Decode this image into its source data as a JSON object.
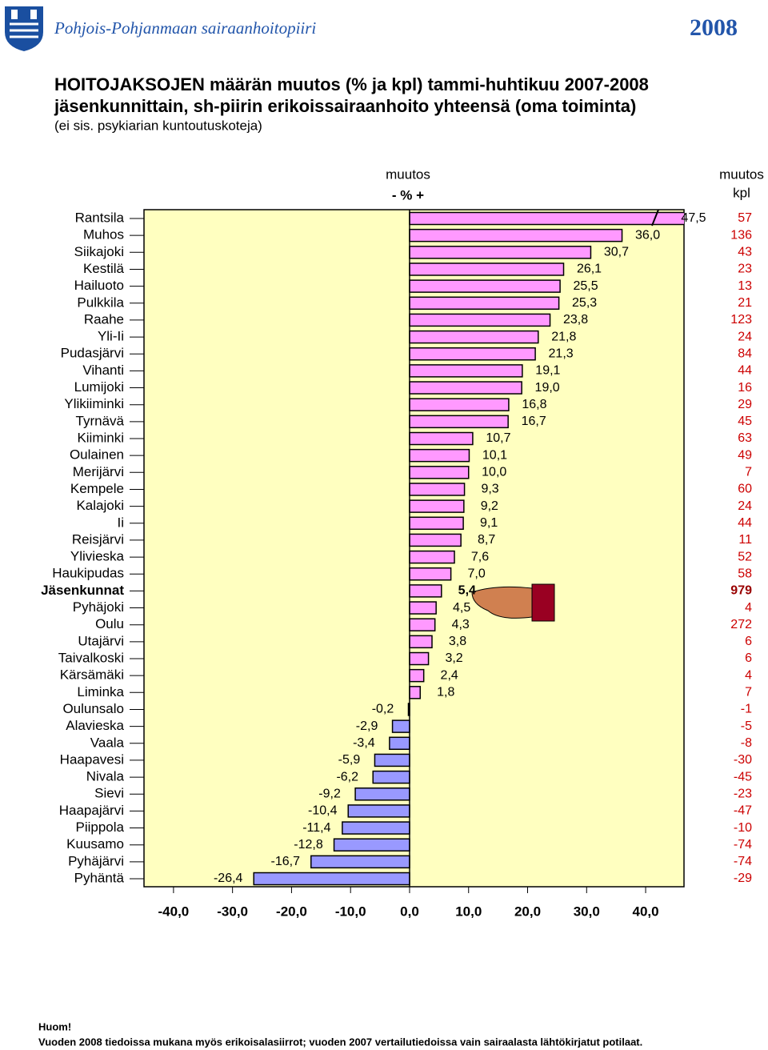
{
  "header": {
    "organization": "Pohjois-Pohjanmaan sairaanhoitopiiri",
    "year": "2008"
  },
  "chart_data": {
    "type": "hbar",
    "title": [
      "HOITOJAKSOJEN määrän muutos (% ja kpl) tammi-huhtikuu 2007-2008",
      "jäsenkunnittain, sh-piirin erikoissairaanhoito yhteensä (oma toiminta)",
      "(ei sis. psykiarian kuntoutuskoteja)"
    ],
    "pct_header": [
      "muutos",
      "- % +"
    ],
    "kpl_header": [
      "muutos",
      "kpl"
    ],
    "categories": [
      "Rantsila",
      "Muhos",
      "Siikajoki",
      "Kestilä",
      "Hailuoto",
      "Pulkkila",
      "Raahe",
      "Yli-Ii",
      "Pudasjärvi",
      "Vihanti",
      "Lumijoki",
      "Ylikiiminki",
      "Tyrnävä",
      "Kiiminki",
      "Oulainen",
      "Merijärvi",
      "Kempele",
      "Kalajoki",
      "Ii",
      "Reisjärvi",
      "Ylivieska",
      "Haukipudas",
      "Jäsenkunnat",
      "Pyhäjoki",
      "Oulu",
      "Utajärvi",
      "Taivalkoski",
      "Kärsämäki",
      "Liminka",
      "Oulunsalo",
      "Alavieska",
      "Vaala",
      "Haapavesi",
      "Nivala",
      "Sievi",
      "Haapajärvi",
      "Piippola",
      "Kuusamo",
      "Pyhäjärvi",
      "Pyhäntä"
    ],
    "values": [
      47.5,
      36.0,
      30.7,
      26.1,
      25.5,
      25.3,
      23.8,
      21.8,
      21.3,
      19.1,
      19.0,
      16.8,
      16.7,
      10.7,
      10.1,
      10.0,
      9.3,
      9.2,
      9.1,
      8.7,
      7.6,
      7.0,
      5.4,
      4.5,
      4.3,
      3.8,
      3.2,
      2.4,
      1.8,
      -0.2,
      -2.9,
      -3.4,
      -5.9,
      -6.2,
      -9.2,
      -10.4,
      -11.4,
      -12.8,
      -16.7,
      -26.4
    ],
    "value_labels": [
      "47,5",
      "36,0",
      "30,7",
      "26,1",
      "25,5",
      "25,3",
      "23,8",
      "21,8",
      "21,3",
      "19,1",
      "19,0",
      "16,8",
      "16,7",
      "10,7",
      "10,1",
      "10,0",
      "9,3",
      "9,2",
      "9,1",
      "8,7",
      "7,6",
      "7,0",
      "5,4",
      "4,5",
      "4,3",
      "3,8",
      "3,2",
      "2,4",
      "1,8",
      "-0,2",
      "-2,9",
      "-3,4",
      "-5,9",
      "-6,2",
      "-9,2",
      "-10,4",
      "-11,4",
      "-12,8",
      "-16,7",
      "-26,4"
    ],
    "kpl": [
      57,
      136,
      43,
      23,
      13,
      21,
      123,
      24,
      84,
      44,
      16,
      29,
      45,
      63,
      49,
      7,
      60,
      24,
      44,
      11,
      52,
      58,
      979,
      4,
      272,
      6,
      6,
      4,
      7,
      -1,
      -5,
      -8,
      -30,
      -45,
      -23,
      -47,
      -10,
      -74,
      -74,
      -29
    ],
    "highlight": 22,
    "positive_color": "#ff99ff",
    "negative_color": "#9999ff",
    "plot_background": "#ffffc0",
    "xlim": [
      -45,
      46.5
    ],
    "xticks": [
      {
        "value": -40,
        "label": "-40,0"
      },
      {
        "value": -30,
        "label": "-30,0"
      },
      {
        "value": -20,
        "label": "-20,0"
      },
      {
        "value": -10,
        "label": "-10,0"
      },
      {
        "value": 0,
        "label": "0,0"
      },
      {
        "value": 10,
        "label": "10,0"
      },
      {
        "value": 20,
        "label": "20,0"
      },
      {
        "value": 30,
        "label": "30,0"
      },
      {
        "value": 40,
        "label": "40,0"
      }
    ]
  },
  "footer": {
    "heading": "Huom!",
    "note": "Vuoden 2008 tiedoissa mukana myös erikoisalasiirrot; vuoden 2007 vertailutiedoissa vain sairaalasta lähtökirjatut potilaat."
  }
}
